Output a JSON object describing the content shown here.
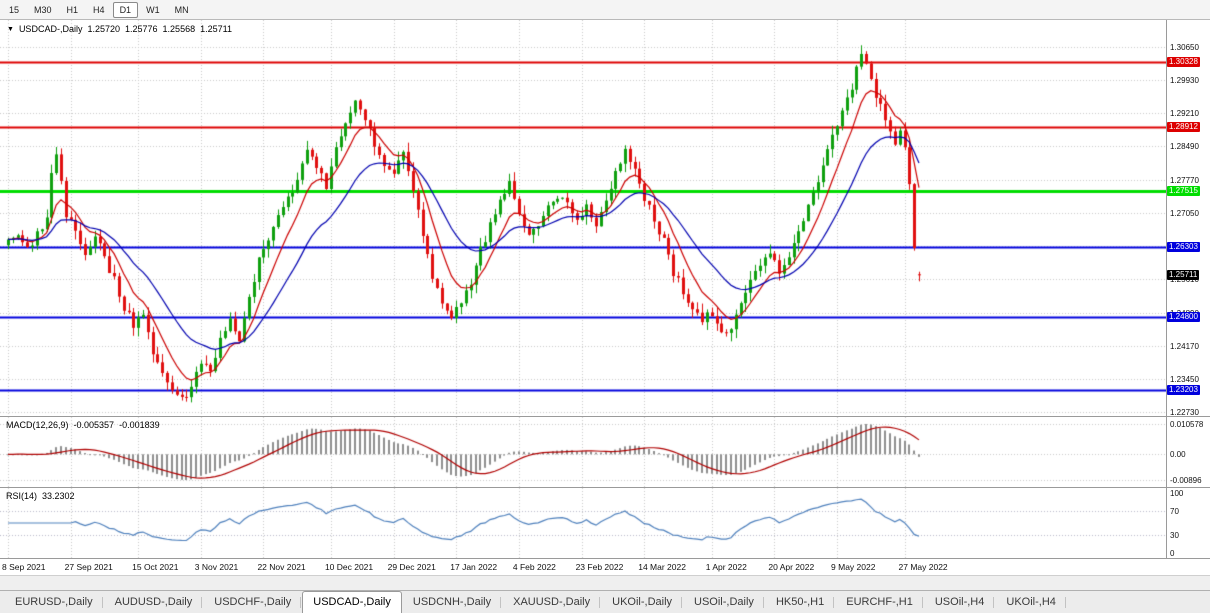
{
  "toolbar": {
    "timeframes": [
      "15",
      "M30",
      "H1",
      "H4",
      "D1",
      "W1",
      "MN"
    ],
    "active_timeframe": "D1"
  },
  "chart_header": {
    "dropdown_icon": "▼",
    "title": "USDCAD-,Daily",
    "open": "1.25720",
    "high": "1.25776",
    "low": "1.25568",
    "close": "1.25711"
  },
  "chart_data": {
    "type": "candlestick",
    "symbol": "USDCAD-",
    "timeframe": "Daily",
    "last_candle": {
      "open": 1.2572,
      "high": 1.25776,
      "low": 1.25568,
      "close": 1.25711
    },
    "candles_count": 190,
    "price_range": [
      1.2265,
      1.3123
    ],
    "price_ticks": [
      {
        "v": 1.3065,
        "label": "1.30650"
      },
      {
        "v": 1.2993,
        "label": "1.29930"
      },
      {
        "v": 1.2921,
        "label": "1.29210"
      },
      {
        "v": 1.2849,
        "label": "1.28490"
      },
      {
        "v": 1.2777,
        "label": "1.27770"
      },
      {
        "v": 1.2705,
        "label": "1.27050"
      },
      {
        "v": 1.2633,
        "label": "1.26330"
      },
      {
        "v": 1.2561,
        "label": "1.25610"
      },
      {
        "v": 1.2489,
        "label": "1.24890"
      },
      {
        "v": 1.2417,
        "label": "1.24170"
      },
      {
        "v": 1.2345,
        "label": "1.23450"
      },
      {
        "v": 1.2273,
        "label": "1.22730"
      }
    ],
    "hlines": [
      {
        "price": 1.30328,
        "label": "1.30328",
        "color": "#dd0000",
        "width": 2
      },
      {
        "price": 1.28912,
        "label": "1.28912",
        "color": "#dd0000",
        "width": 2
      },
      {
        "price": 1.27515,
        "label": "1.27515",
        "color": "#00dd00",
        "width": 3
      },
      {
        "price": 1.26303,
        "label": "1.26303",
        "color": "#0000dd",
        "width": 2
      },
      {
        "price": 1.248,
        "label": "1.24800",
        "color": "#0000dd",
        "width": 2
      },
      {
        "price": 1.23203,
        "label": "1.23203",
        "color": "#0000dd",
        "width": 2
      }
    ],
    "current_price": {
      "value": 1.25711,
      "label": "1.25711",
      "bg": "#000000"
    },
    "x_labels": [
      {
        "i": 0,
        "label": "8 Sep 2021"
      },
      {
        "i": 13,
        "label": "27 Sep 2021"
      },
      {
        "i": 27,
        "label": "15 Oct 2021"
      },
      {
        "i": 40,
        "label": "3 Nov 2021"
      },
      {
        "i": 53,
        "label": "22 Nov 2021"
      },
      {
        "i": 67,
        "label": "10 Dec 2021"
      },
      {
        "i": 80,
        "label": "29 Dec 2021"
      },
      {
        "i": 93,
        "label": "17 Jan 2022"
      },
      {
        "i": 106,
        "label": "4 Feb 2022"
      },
      {
        "i": 119,
        "label": "23 Feb 2022"
      },
      {
        "i": 132,
        "label": "14 Mar 2022"
      },
      {
        "i": 146,
        "label": "1 Apr 2022"
      },
      {
        "i": 159,
        "label": "20 Apr 2022"
      },
      {
        "i": 172,
        "label": "9 May 2022"
      },
      {
        "i": 186,
        "label": "27 May 2022"
      }
    ],
    "close_path": [
      [
        0,
        1.2645
      ],
      [
        2,
        1.2665
      ],
      [
        4,
        1.262
      ],
      [
        6,
        1.2655
      ],
      [
        8,
        1.27
      ],
      [
        9,
        1.279
      ],
      [
        10,
        1.284
      ],
      [
        11,
        1.277
      ],
      [
        12,
        1.27
      ],
      [
        14,
        1.2665
      ],
      [
        16,
        1.262
      ],
      [
        18,
        1.266
      ],
      [
        20,
        1.2605
      ],
      [
        22,
        1.256
      ],
      [
        24,
        1.2505
      ],
      [
        26,
        1.2465
      ],
      [
        28,
        1.2485
      ],
      [
        30,
        1.2405
      ],
      [
        32,
        1.236
      ],
      [
        34,
        1.2315
      ],
      [
        36,
        1.2295
      ],
      [
        38,
        1.233
      ],
      [
        40,
        1.238
      ],
      [
        42,
        1.236
      ],
      [
        44,
        1.243
      ],
      [
        46,
        1.247
      ],
      [
        48,
        1.2425
      ],
      [
        50,
        1.252
      ],
      [
        52,
        1.26
      ],
      [
        54,
        1.265
      ],
      [
        56,
        1.269
      ],
      [
        58,
        1.274
      ],
      [
        60,
        1.278
      ],
      [
        62,
        1.283
      ],
      [
        64,
        1.28
      ],
      [
        66,
        1.2765
      ],
      [
        68,
        1.284
      ],
      [
        70,
        1.2905
      ],
      [
        72,
        1.295
      ],
      [
        74,
        1.29
      ],
      [
        76,
        1.286
      ],
      [
        78,
        1.2815
      ],
      [
        80,
        1.279
      ],
      [
        82,
        1.283
      ],
      [
        84,
        1.276
      ],
      [
        86,
        1.266
      ],
      [
        88,
        1.2565
      ],
      [
        90,
        1.252
      ],
      [
        92,
        1.247
      ],
      [
        94,
        1.251
      ],
      [
        96,
        1.256
      ],
      [
        98,
        1.262
      ],
      [
        100,
        1.268
      ],
      [
        102,
        1.273
      ],
      [
        104,
        1.2765
      ],
      [
        106,
        1.27
      ],
      [
        108,
        1.265
      ],
      [
        110,
        1.267
      ],
      [
        112,
        1.2715
      ],
      [
        114,
        1.274
      ],
      [
        116,
        1.272
      ],
      [
        118,
        1.269
      ],
      [
        120,
        1.272
      ],
      [
        122,
        1.2685
      ],
      [
        124,
        1.274
      ],
      [
        126,
        1.279
      ],
      [
        128,
        1.2845
      ],
      [
        130,
        1.279
      ],
      [
        132,
        1.274
      ],
      [
        134,
        1.269
      ],
      [
        136,
        1.264
      ],
      [
        138,
        1.258
      ],
      [
        140,
        1.254
      ],
      [
        142,
        1.25
      ],
      [
        144,
        1.247
      ],
      [
        146,
        1.249
      ],
      [
        148,
        1.244
      ],
      [
        150,
        1.2465
      ],
      [
        152,
        1.251
      ],
      [
        154,
        1.255
      ],
      [
        156,
        1.259
      ],
      [
        158,
        1.261
      ],
      [
        160,
        1.258
      ],
      [
        162,
        1.262
      ],
      [
        164,
        1.266
      ],
      [
        166,
        1.272
      ],
      [
        168,
        1.278
      ],
      [
        170,
        1.284
      ],
      [
        172,
        1.289
      ],
      [
        174,
        1.295
      ],
      [
        176,
        1.301
      ],
      [
        177,
        1.3045
      ],
      [
        178,
        1.302
      ],
      [
        179,
        1.299
      ],
      [
        180,
        1.2955
      ],
      [
        181,
        1.293
      ],
      [
        182,
        1.29
      ],
      [
        183,
        1.288
      ],
      [
        184,
        1.286
      ],
      [
        185,
        1.2875
      ],
      [
        186,
        1.284
      ],
      [
        187,
        1.276
      ],
      [
        188,
        1.264
      ],
      [
        189,
        1.25711
      ]
    ],
    "colors": {
      "up": "#0fa00f",
      "down": "#e01010",
      "ma_fast": "#cc0000",
      "ma_slow": "#0000b0",
      "grid": "#c9c9c9"
    },
    "indicators": {
      "macd": {
        "name": "MACD(12,26,9)",
        "value_main": "-0.005357",
        "value_signal": "-0.001839",
        "axis": [
          {
            "v": 0.010578,
            "label": "0.010578"
          },
          {
            "v": 0,
            "label": "0.00"
          },
          {
            "v": -0.00896,
            "label": "-0.00896"
          }
        ],
        "histogram_color": "#8f8f8f",
        "signal_color": "#b00000"
      },
      "rsi": {
        "name": "RSI(14)",
        "value": "33.2302",
        "axis": [
          {
            "v": 100,
            "label": "100"
          },
          {
            "v": 70,
            "label": "70"
          },
          {
            "v": 30,
            "label": "30"
          },
          {
            "v": 0,
            "label": "0"
          }
        ],
        "levels": [
          70,
          30
        ],
        "line_color": "#4f81bd"
      }
    }
  },
  "tabs": {
    "active": "USDCAD-,Daily",
    "items": [
      "EURUSD-,Daily",
      "AUDUSD-,Daily",
      "USDCHF-,Daily",
      "USDCAD-,Daily",
      "USDCNH-,Daily",
      "XAUUSD-,Daily",
      "UKOil-,Daily",
      "USOil-,Daily",
      "HK50-,H1",
      "EURCHF-,H1",
      "USOil-,H4",
      "UKOil-,H4"
    ]
  }
}
